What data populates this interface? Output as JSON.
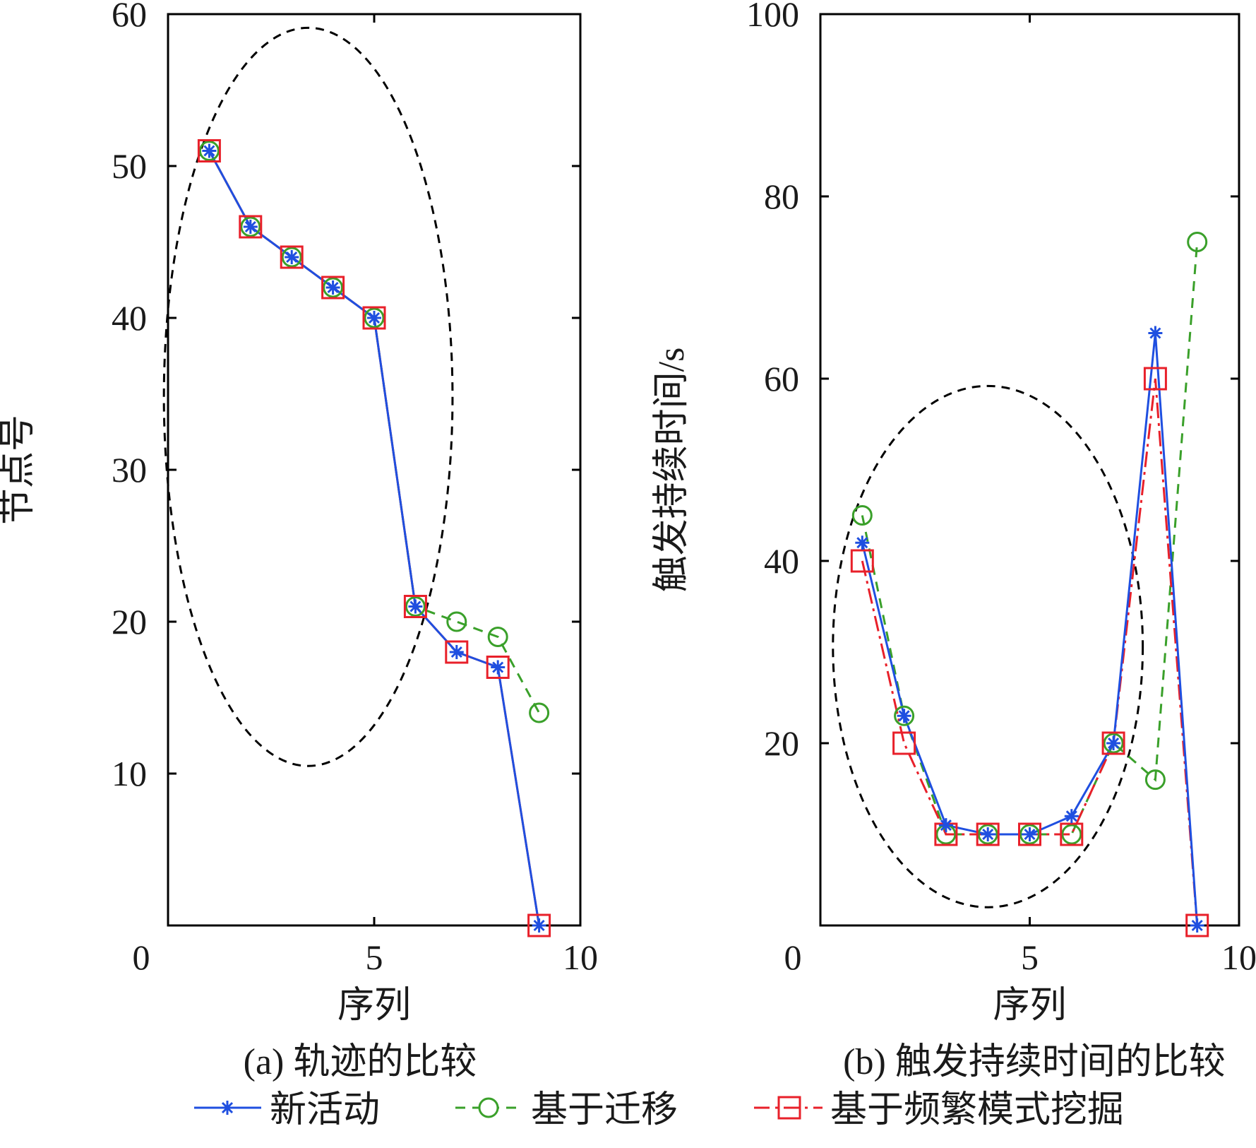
{
  "colors": {
    "series_a": "#1f4fe0",
    "series_b": "#3aa02a",
    "series_c": "#e8202a",
    "axis": "#000000",
    "ellipse": "#000000"
  },
  "legend": [
    {
      "label": "新活动",
      "series": "new_activity",
      "marker": "asterisk",
      "line": "solid",
      "color": "#1f4fe0"
    },
    {
      "label": "基于迁移",
      "series": "migration",
      "marker": "circle",
      "line": "dashed",
      "color": "#3aa02a"
    },
    {
      "label": "基于频繁模式挖掘",
      "series": "frequent_pattern",
      "marker": "square",
      "line": "dashdot",
      "color": "#e8202a"
    }
  ],
  "chart_data": [
    {
      "type": "line",
      "caption": "(a) 轨迹的比较",
      "xlabel": "序列",
      "ylabel": "节点号",
      "xlim": [
        0,
        10
      ],
      "ylim": [
        0,
        60
      ],
      "xticks": [
        0,
        5,
        10
      ],
      "yticks": [
        0,
        10,
        20,
        30,
        40,
        50,
        60
      ],
      "xtick_labels": [
        "0",
        "5",
        "10"
      ],
      "ytick_labels": [
        "",
        "10",
        "20",
        "30",
        "40",
        "50",
        "60"
      ],
      "highlight_ellipse": {
        "cx": 3.4,
        "cy": 34.8,
        "rx": 3.5,
        "ry": 24.3
      },
      "series": [
        {
          "name": "新活动",
          "key": "new_activity",
          "x": [
            1,
            2,
            3,
            4,
            5,
            6,
            7,
            8,
            9
          ],
          "y": [
            51,
            46,
            44,
            42,
            40,
            21,
            18,
            17,
            0
          ]
        },
        {
          "name": "基于迁移",
          "key": "migration",
          "x": [
            1,
            2,
            3,
            4,
            5,
            6,
            7,
            8,
            9
          ],
          "y": [
            51,
            46,
            44,
            42,
            40,
            21,
            20,
            19,
            14
          ]
        },
        {
          "name": "基于频繁模式挖掘",
          "key": "frequent_pattern",
          "x": [
            1,
            2,
            3,
            4,
            5,
            6,
            7,
            8,
            9
          ],
          "y": [
            51,
            46,
            44,
            42,
            40,
            21,
            18,
            17,
            0
          ]
        }
      ]
    },
    {
      "type": "line",
      "caption": "(b) 触发持续时间的比较",
      "xlabel": "序列",
      "ylabel": "触发持续时间/s",
      "xlim": [
        0,
        10
      ],
      "ylim": [
        0,
        100
      ],
      "xticks": [
        0,
        5,
        10
      ],
      "yticks": [
        0,
        20,
        40,
        60,
        80,
        100
      ],
      "xtick_labels": [
        "0",
        "5",
        "10"
      ],
      "ytick_labels": [
        "",
        "20",
        "40",
        "60",
        "80",
        "100"
      ],
      "highlight_ellipse": {
        "cx": 4.0,
        "cy": 30.6,
        "rx": 3.7,
        "ry": 28.6
      },
      "series": [
        {
          "name": "新活动",
          "key": "new_activity",
          "x": [
            1,
            2,
            3,
            4,
            5,
            6,
            7,
            8,
            9
          ],
          "y": [
            42,
            23,
            11,
            10,
            10,
            12,
            20,
            65,
            0
          ]
        },
        {
          "name": "基于迁移",
          "key": "migration",
          "x": [
            1,
            2,
            3,
            4,
            5,
            6,
            7,
            8,
            9
          ],
          "y": [
            45,
            23,
            10,
            10,
            10,
            10,
            20,
            16,
            75
          ]
        },
        {
          "name": "基于频繁模式挖掘",
          "key": "frequent_pattern",
          "x": [
            1,
            2,
            3,
            4,
            5,
            6,
            7,
            8,
            9
          ],
          "y": [
            40,
            20,
            10,
            10,
            10,
            10,
            20,
            60,
            0
          ]
        }
      ]
    }
  ]
}
